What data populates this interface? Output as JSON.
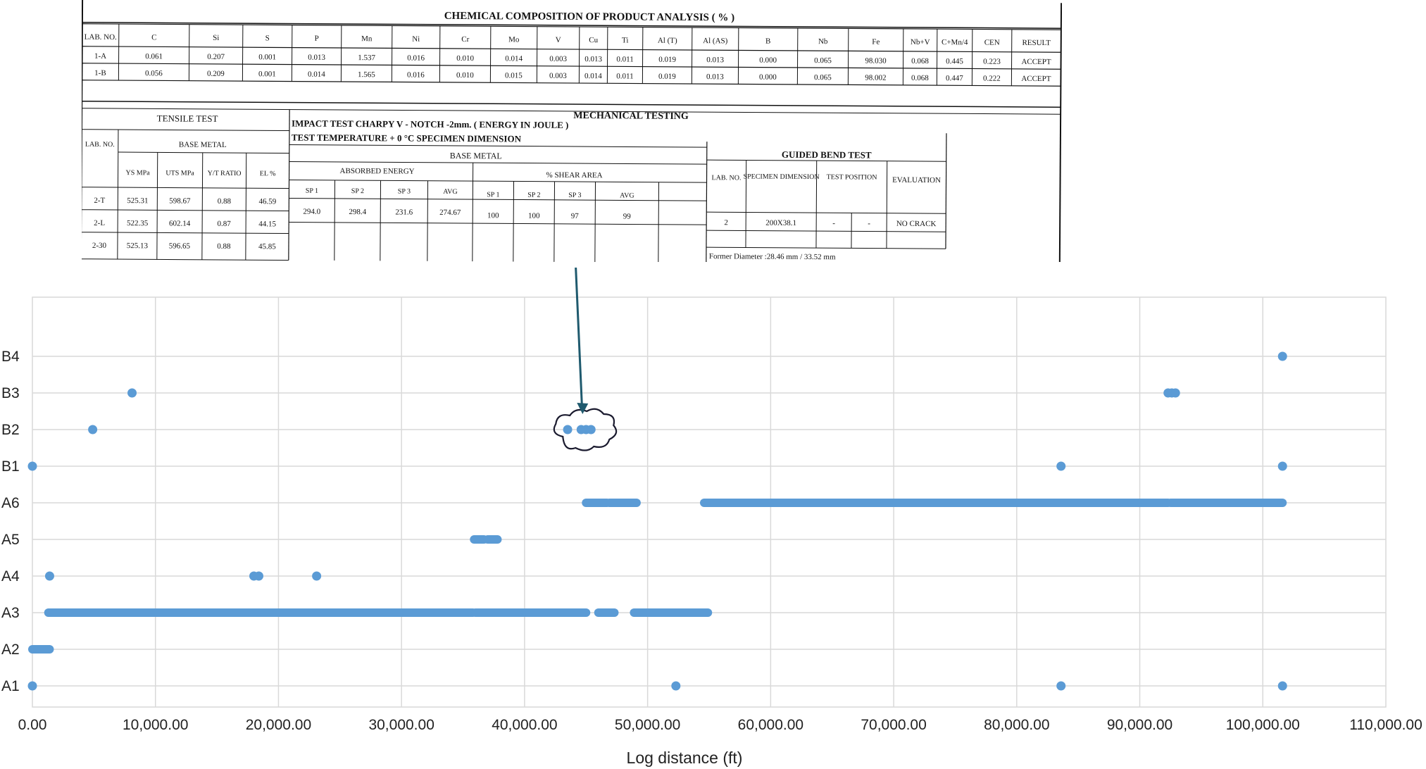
{
  "document": {
    "chem_title": "CHEMICAL COMPOSITION OF PRODUCT ANALYSIS  ( % )",
    "chem_headers": [
      "LAB. NO.",
      "C",
      "Si",
      "S",
      "P",
      "Mn",
      "Ni",
      "Cr",
      "Mo",
      "V",
      "Cu",
      "Ti",
      "Al (T)",
      "Al (AS)",
      "B",
      "Nb",
      "Fe",
      "Nb+V",
      "C+Mn/4",
      "CEN",
      "RESULT"
    ],
    "chem_rows": [
      [
        "1-A",
        "0.061",
        "0.207",
        "0.001",
        "0.013",
        "1.537",
        "0.016",
        "0.010",
        "0.014",
        "0.003",
        "0.013",
        "0.011",
        "0.019",
        "0.013",
        "0.000",
        "0.065",
        "98.030",
        "0.068",
        "0.445",
        "0.223",
        "ACCEPT"
      ],
      [
        "1-B",
        "0.056",
        "0.209",
        "0.001",
        "0.014",
        "1.565",
        "0.016",
        "0.010",
        "0.015",
        "0.003",
        "0.014",
        "0.011",
        "0.019",
        "0.013",
        "0.000",
        "0.065",
        "98.002",
        "0.068",
        "0.447",
        "0.222",
        "ACCEPT"
      ]
    ],
    "mech_title": "MECHANICAL TESTING",
    "tensile_title": "TENSILE TEST",
    "impact_title": "IMPACT TEST CHARPY V - NOTCH  -2mm. ( ENERGY IN JOULE )",
    "impact_temp": "TEST TEMPERATURE + 0 °C  SPECIMEN DIMENSION",
    "base_metal": "BASE METAL",
    "absorbed_energy": "ABSORBED ENERGY",
    "shear_area": "% SHEAR AREA",
    "bend_title": "GUIDED BEND TEST",
    "lab_no": "LAB. NO.",
    "tensile_headers": [
      "YS MPa",
      "UTS MPa",
      "Y/T RATIO",
      "EL %"
    ],
    "energy_headers": [
      "SP 1",
      "SP 2",
      "SP 3",
      "AVG"
    ],
    "shear_headers": [
      "SP 1",
      "SP 2",
      "SP 3",
      "AVG"
    ],
    "bend_headers": [
      "LAB. NO.",
      "SPECIMEN DIMENSION",
      "TEST POSITION",
      "EVALUATION"
    ],
    "tensile_rows": [
      [
        "2-T",
        "525.31",
        "598.67",
        "0.88",
        "46.59"
      ],
      [
        "2-L",
        "522.35",
        "602.14",
        "0.87",
        "44.15"
      ],
      [
        "2-30",
        "525.13",
        "596.65",
        "0.88",
        "45.85"
      ]
    ],
    "energy_row": [
      "294.0",
      "298.4",
      "231.6",
      "274.67"
    ],
    "shear_row": [
      "100",
      "100",
      "97",
      "99"
    ],
    "bend_row": [
      "2",
      "200X38.1",
      "-",
      "-",
      "-",
      "NO CRACK"
    ],
    "former_diameter": "Former Diameter :28.46 mm / 33.52 mm"
  },
  "chart_data": {
    "type": "scatter",
    "xlabel": "Log distance (ft)",
    "ylabel": "",
    "title": "",
    "xlim": [
      0,
      110000
    ],
    "xticks": [
      0,
      10000,
      20000,
      30000,
      40000,
      50000,
      60000,
      70000,
      80000,
      90000,
      100000,
      110000
    ],
    "xtick_labels": [
      "0.00",
      "10,000.00",
      "20,000.00",
      "30,000.00",
      "40,000.00",
      "50,000.00",
      "60,000.00",
      "70,000.00",
      "80,000.00",
      "90,000.00",
      "100,000.00",
      "110,000.00"
    ],
    "categories": [
      "A1",
      "A2",
      "A3",
      "A4",
      "A5",
      "A6",
      "B1",
      "B2",
      "B3",
      "B4"
    ],
    "grid": true,
    "marker_color": "#5b9bd5",
    "points": {
      "A1": [
        0,
        52300,
        83600,
        101600
      ],
      "A2": [],
      "A3": [],
      "A4": [
        1400,
        18000,
        18400,
        23100
      ],
      "A5": [],
      "A6": [],
      "B1": [
        0,
        83600,
        101600
      ],
      "B2": [
        4900,
        43500,
        44600,
        45000,
        45400
      ],
      "B3": [
        8100,
        92300,
        92600,
        92900
      ],
      "B4": [
        101600
      ]
    },
    "segments": {
      "A2": [
        [
          0,
          1400
        ]
      ],
      "A3": [
        [
          1300,
          35800
        ],
        [
          36000,
          45000
        ],
        [
          46000,
          47300
        ],
        [
          48900,
          54900
        ]
      ],
      "A5": [
        [
          35900,
          36700
        ],
        [
          37000,
          37800
        ]
      ],
      "A6": [
        [
          45000,
          46700
        ],
        [
          46900,
          49100
        ],
        [
          54600,
          92300
        ],
        [
          92500,
          101600
        ]
      ]
    },
    "annotation": {
      "shape": "cloud",
      "category": "B2",
      "x": 44600,
      "arrow_color": "#1f5a6e"
    }
  }
}
